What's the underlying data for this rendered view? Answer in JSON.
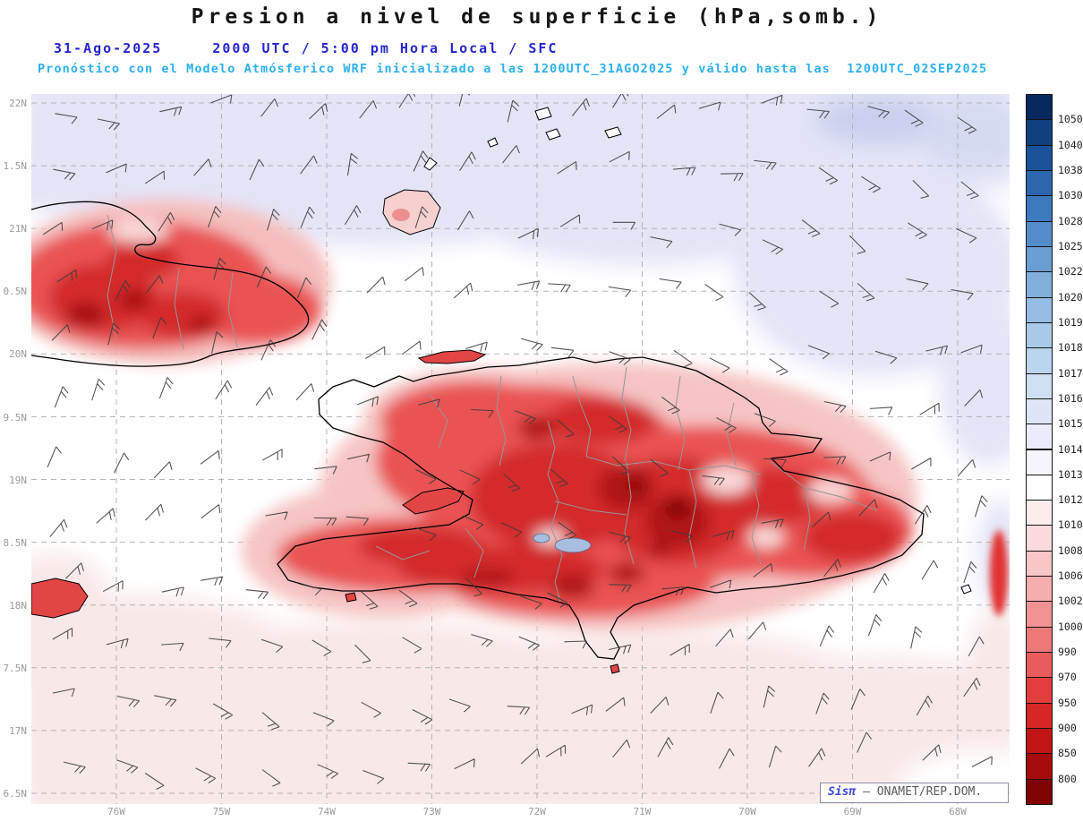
{
  "title": "Presion a nivel de superficie (hPa,somb.)",
  "header": {
    "date": "31-Ago-2025",
    "time_line": "2000 UTC / 5:00 pm Hora Local / SFC",
    "forecast_line": "Pronóstico con el Modelo Atmósferico WRF inicializado a las 1200UTC_31AGO2025 y válido hasta las  1200UTC_02SEP2025"
  },
  "axes": {
    "lat_ticks": [
      "22N",
      "1.5N",
      "21N",
      "0.5N",
      "20N",
      "9.5N",
      "19N",
      "8.5N",
      "18N",
      "7.5N",
      "17N",
      "6.5N"
    ],
    "lon_ticks": [
      "76W",
      "75W",
      "74W",
      "73W",
      "72W",
      "71W",
      "70W",
      "69W",
      "68W"
    ]
  },
  "colorbar": {
    "labels": [
      "1050",
      "1040",
      "1038",
      "1030",
      "1028",
      "1025",
      "1022",
      "1020",
      "1019",
      "1018",
      "1017",
      "1016",
      "1015",
      "1014",
      "1013",
      "1012",
      "1010",
      "1008",
      "1006",
      "1002",
      "1000",
      "990",
      "970",
      "950",
      "900",
      "850",
      "800"
    ],
    "colors": [
      "#08285e",
      "#11407f",
      "#1a529b",
      "#2b66ae",
      "#3d79bd",
      "#538cc9",
      "#699ed3",
      "#80afdc",
      "#95bde3",
      "#a9cae9",
      "#bcd5ee",
      "#cfdff3",
      "#dde6f6",
      "#eaedf9",
      "#f5f5fc",
      "#ffffff",
      "#fdecec",
      "#fbdbdb",
      "#f9c6c6",
      "#f6adad",
      "#f29292",
      "#ee7878",
      "#e95c5c",
      "#e23e3e",
      "#d62626",
      "#c21616",
      "#a60c0c",
      "#800303"
    ]
  },
  "watermark": {
    "brand": "Sisπ",
    "org": " – ONAMET/REP.DOM."
  }
}
